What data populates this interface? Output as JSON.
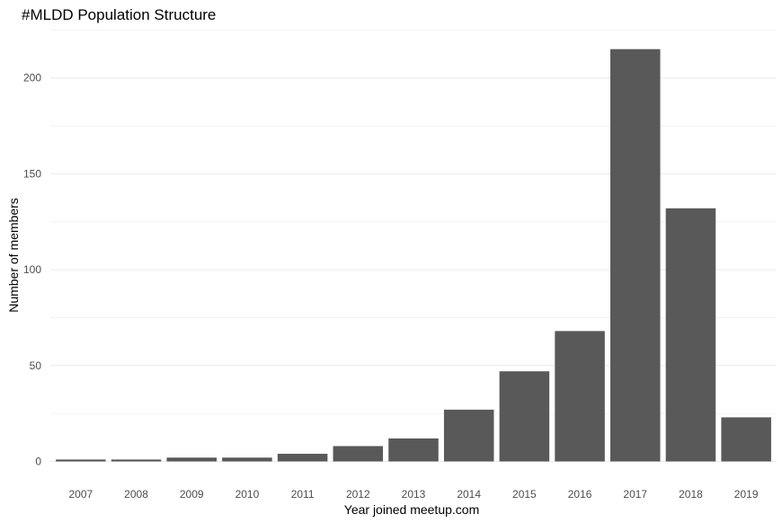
{
  "chart_data": {
    "type": "bar",
    "title": "#MLDD Population Structure",
    "xlabel": "Year joined meetup.com",
    "ylabel": "Number of members",
    "categories": [
      "2007",
      "2008",
      "2009",
      "2010",
      "2011",
      "2012",
      "2013",
      "2014",
      "2015",
      "2016",
      "2017",
      "2018",
      "2019"
    ],
    "values": [
      1,
      1,
      2,
      2,
      4,
      8,
      12,
      27,
      47,
      68,
      215,
      132,
      23
    ],
    "ylim": [
      0,
      225
    ],
    "yticks": [
      0,
      50,
      100,
      150,
      200
    ],
    "grid": true,
    "legend": "none",
    "bar_color": "#595959"
  }
}
